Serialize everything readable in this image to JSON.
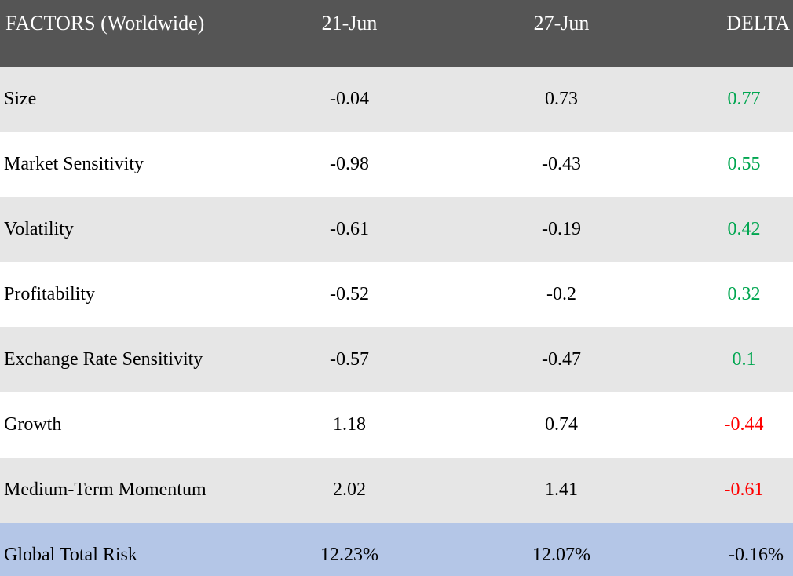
{
  "header": {
    "factor_label": "FACTORS (Worldwide)",
    "col1": "21-Jun",
    "col2": "27-Jun",
    "col3": "DELTA"
  },
  "rows": [
    {
      "factor": "Size",
      "v1": "-0.04",
      "v2": "0.73",
      "delta": "0.77",
      "delta_sign": "pos"
    },
    {
      "factor": "Market Sensitivity",
      "v1": "-0.98",
      "v2": "-0.43",
      "delta": "0.55",
      "delta_sign": "pos"
    },
    {
      "factor": "Volatility",
      "v1": "-0.61",
      "v2": "-0.19",
      "delta": "0.42",
      "delta_sign": "pos"
    },
    {
      "factor": "Profitability",
      "v1": "-0.52",
      "v2": "-0.2",
      "delta": "0.32",
      "delta_sign": "pos"
    },
    {
      "factor": "Exchange Rate Sensitivity",
      "v1": "-0.57",
      "v2": "-0.47",
      "delta": "0.1",
      "delta_sign": "pos"
    },
    {
      "factor": "Growth",
      "v1": "1.18",
      "v2": "0.74",
      "delta": "-0.44",
      "delta_sign": "neg"
    },
    {
      "factor": "Medium-Term Momentum",
      "v1": "2.02",
      "v2": "1.41",
      "delta": "-0.61",
      "delta_sign": "neg"
    }
  ],
  "total": {
    "factor": "Global Total Risk",
    "v1": "12.23%",
    "v2": "12.07%",
    "delta": "-0.16%"
  },
  "colors": {
    "header_bg": "#555555",
    "row_alt_bg": "#e6e6e6",
    "total_bg": "#b4c6e7",
    "positive": "#00a650",
    "negative": "#ff0000"
  }
}
